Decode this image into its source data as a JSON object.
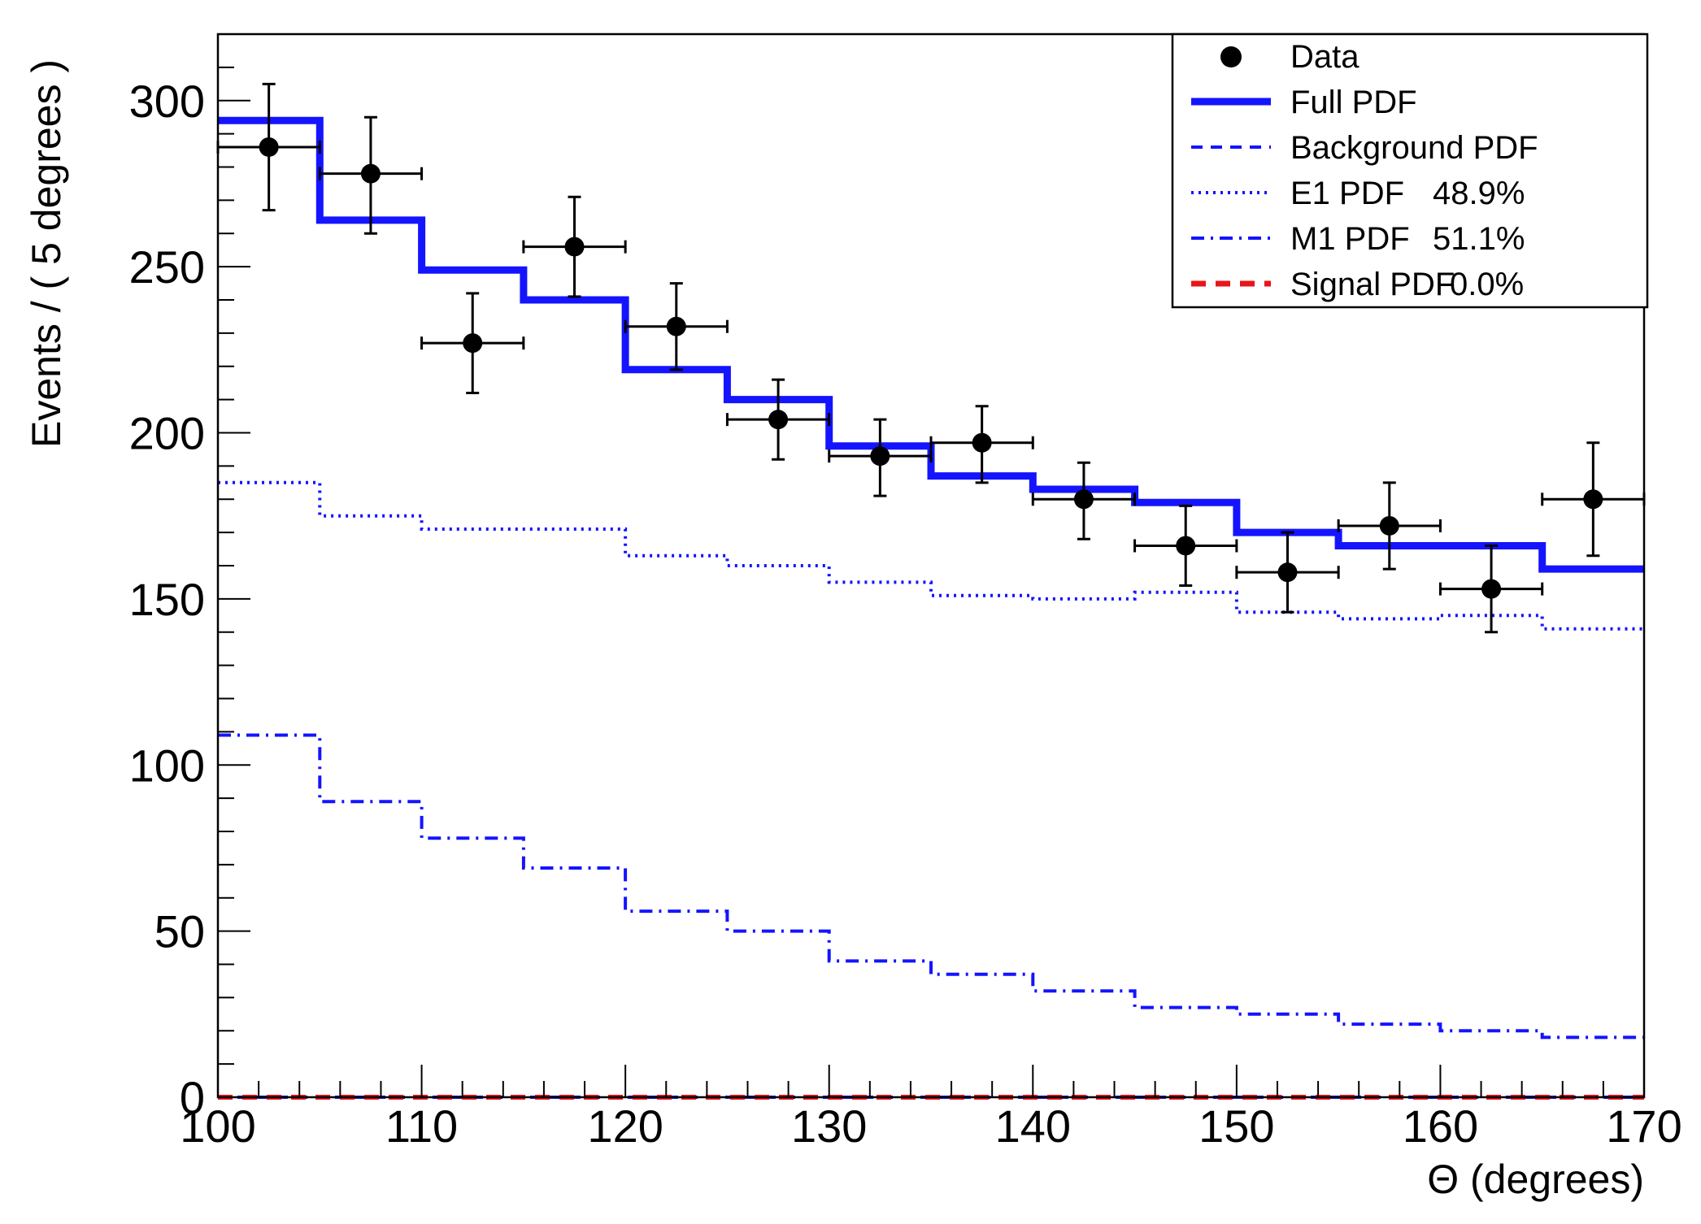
{
  "chart_data": {
    "type": "histogram-fit",
    "title": "",
    "xlabel": "Θ (degrees)",
    "ylabel": "Events / ( 5 degrees )",
    "xlim": [
      100,
      170
    ],
    "ylim": [
      0,
      320
    ],
    "x_major_ticks": [
      100,
      110,
      120,
      130,
      140,
      150,
      160,
      170
    ],
    "y_major_ticks": [
      0,
      50,
      100,
      150,
      200,
      250,
      300
    ],
    "x_tick_labels": [
      "100",
      "110",
      "120",
      "130",
      "140",
      "150",
      "160",
      "170"
    ],
    "y_tick_labels": [
      "0",
      "50",
      "100",
      "150",
      "200",
      "250",
      "300"
    ],
    "bin_edges": [
      100,
      105,
      110,
      115,
      120,
      125,
      130,
      135,
      140,
      145,
      150,
      155,
      160,
      165,
      170
    ],
    "data": {
      "name": "Data",
      "x": [
        102.5,
        107.5,
        112.5,
        117.5,
        122.5,
        127.5,
        132.5,
        137.5,
        142.5,
        147.5,
        152.5,
        157.5,
        162.5,
        167.5
      ],
      "y": [
        286,
        278,
        227,
        256,
        232,
        204,
        193,
        197,
        180,
        166,
        158,
        172,
        153,
        180
      ],
      "yerr_low": [
        19,
        18,
        15,
        15,
        13,
        12,
        12,
        12,
        12,
        12,
        12,
        13,
        13,
        17
      ],
      "yerr_high": [
        19,
        17,
        15,
        15,
        13,
        12,
        11,
        11,
        11,
        12,
        12,
        13,
        13,
        17
      ],
      "xerr": 2.5
    },
    "series": [
      {
        "name": "Full PDF",
        "style": "solid",
        "color": "#1414ff",
        "values": [
          294,
          264,
          249,
          240,
          219,
          210,
          196,
          187,
          183,
          179,
          170,
          166,
          166,
          159
        ]
      },
      {
        "name": "Background PDF",
        "style": "dashed",
        "color": "#1414ff",
        "values": [
          0,
          0,
          0,
          0,
          0,
          0,
          0,
          0,
          0,
          0,
          0,
          0,
          0,
          0
        ]
      },
      {
        "name": "E1 PDF",
        "style": "dotted",
        "color": "#1414ff",
        "values": [
          185,
          175,
          171,
          171,
          163,
          160,
          155,
          151,
          150,
          152,
          146,
          144,
          145,
          141
        ]
      },
      {
        "name": "M1 PDF",
        "style": "dashdot",
        "color": "#1414ff",
        "values": [
          109,
          89,
          78,
          69,
          56,
          50,
          41,
          37,
          32,
          27,
          25,
          22,
          20,
          18
        ]
      },
      {
        "name": "Signal PDF",
        "style": "dashed-thick",
        "color": "#e8151b",
        "values": [
          0,
          0,
          0,
          0,
          0,
          0,
          0,
          0,
          0,
          0,
          0,
          0,
          0,
          0
        ]
      }
    ],
    "legend": {
      "placement": "top-right",
      "entries": [
        {
          "key": "data",
          "label": "Data",
          "value": ""
        },
        {
          "key": "full",
          "label": "Full PDF",
          "value": ""
        },
        {
          "key": "background",
          "label": "Background PDF",
          "value": ""
        },
        {
          "key": "e1",
          "label": "E1 PDF",
          "value": "48.9%"
        },
        {
          "key": "m1",
          "label": "M1 PDF",
          "value": "51.1%"
        },
        {
          "key": "signal",
          "label": "Signal PDF",
          "value": "0.0%"
        }
      ]
    },
    "colors": {
      "axis": "#000000",
      "data": "#000000",
      "pdf_blue": "#1414ff",
      "signal_red": "#e8151b"
    }
  }
}
